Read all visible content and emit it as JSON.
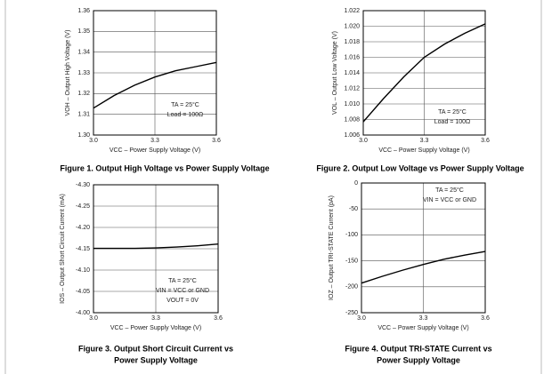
{
  "chart_data": [
    {
      "type": "line",
      "caption": [
        "Figure 1. Output High Voltage vs Power Supply Voltage"
      ],
      "xlabel": "VCC – Power Supply Voltage (V)",
      "ylabel": "VOH – Output High Voltage (V)",
      "annotations": [
        "TA = 25°C",
        "Load = 100Ω"
      ],
      "x": [
        3.0,
        3.1,
        3.2,
        3.3,
        3.4,
        3.5,
        3.6
      ],
      "values": [
        1.313,
        1.319,
        1.324,
        1.328,
        1.331,
        1.333,
        1.335
      ],
      "color": "#000000",
      "xlim": [
        3.0,
        3.6
      ],
      "xticks": [
        {
          "value": 3,
          "label": "3.0"
        },
        3.3,
        3.6
      ],
      "ylim": [
        1.3,
        1.36
      ],
      "yticks": [
        {
          "value": 1.3,
          "label": "1.30"
        },
        1.31,
        1.32,
        1.33,
        1.34,
        1.35,
        1.36
      ],
      "grid": true
    },
    {
      "type": "line",
      "caption": [
        "Figure 2. Output Low Voltage vs Power Supply Voltage"
      ],
      "xlabel": "VCC – Power Supply Voltage (V)",
      "ylabel": "VOL – Output Low Voltage (V)",
      "annotations": [
        "TA = 25°C",
        "Load = 100Ω"
      ],
      "x": [
        3.0,
        3.1,
        3.2,
        3.3,
        3.4,
        3.5,
        3.6
      ],
      "values": [
        1.0077,
        1.0107,
        1.0135,
        1.016,
        1.0177,
        1.0191,
        1.0203
      ],
      "color": "#000000",
      "xlim": [
        3.0,
        3.6
      ],
      "xticks": [
        {
          "value": 3,
          "label": "3.0"
        },
        3.3,
        3.6
      ],
      "ylim": [
        1.006,
        1.022
      ],
      "yticks": [
        1.006,
        1.008,
        {
          "value": 1.01,
          "label": "1.010"
        },
        1.012,
        1.014,
        1.016,
        1.018,
        {
          "value": 1.02,
          "label": "1.020"
        },
        1.022
      ],
      "grid": true
    },
    {
      "type": "line",
      "caption": [
        "Figure 3. Output Short Circuit Current vs",
        "Power Supply Voltage"
      ],
      "xlabel": "VCC – Power Supply Voltage (V)",
      "ylabel": "IOS – Output Short Circuit Current (mA)",
      "annotations": [
        "TA = 25°C",
        "VIN = VCC or GND",
        "VOUT = 0V"
      ],
      "x": [
        3.0,
        3.1,
        3.2,
        3.3,
        3.4,
        3.5,
        3.6
      ],
      "values": [
        -4.151,
        -4.151,
        -4.151,
        -4.152,
        -4.154,
        -4.157,
        -4.161
      ],
      "color": "#000000",
      "xlim": [
        3.0,
        3.6
      ],
      "xticks": [
        {
          "value": 3,
          "label": "3.0"
        },
        3.3,
        3.6
      ],
      "ylim": [
        -4.0,
        -4.3
      ],
      "yticks": [
        {
          "value": -4.0,
          "label": "-4.00"
        },
        -4.05,
        {
          "value": -4.1,
          "label": "-4.10"
        },
        -4.15,
        {
          "value": -4.2,
          "label": "-4.20"
        },
        -4.25,
        {
          "value": -4.3,
          "label": "-4.30"
        }
      ],
      "grid": true
    },
    {
      "type": "line",
      "caption": [
        "Figure 4. Output TRI-STATE Current vs",
        "Power Supply Voltage"
      ],
      "xlabel": "VCC – Power Supply Voltage (V)",
      "ylabel": "IOZ – Output TRI-STATE Current (pA)",
      "annotations": [
        "TA = 25°C",
        "VIN = VCC or GND"
      ],
      "x": [
        3.0,
        3.1,
        3.2,
        3.3,
        3.4,
        3.5,
        3.6
      ],
      "values": [
        -193,
        -180,
        -168,
        -157,
        -147,
        -139,
        -132
      ],
      "color": "#000000",
      "xlim": [
        3.0,
        3.6
      ],
      "xticks": [
        {
          "value": 3,
          "label": "3.0"
        },
        3.3,
        3.6
      ],
      "ylim": [
        -250,
        0
      ],
      "yticks": [
        -250,
        -200,
        -150,
        -100,
        -50,
        0
      ],
      "grid": true
    }
  ]
}
